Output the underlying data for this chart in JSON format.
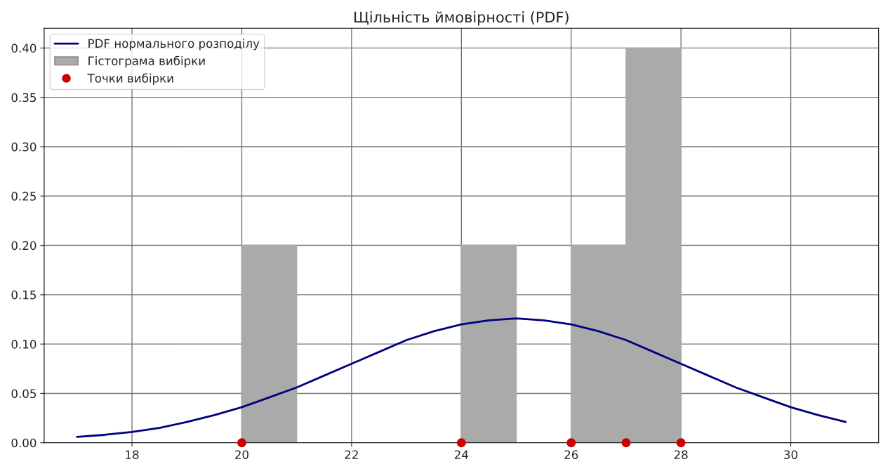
{
  "chart_data": {
    "type": "line",
    "title": "Щільність ймовірності (PDF)",
    "series": [
      {
        "name": "PDF нормального розподілу",
        "color": "#000080",
        "x": [
          17,
          17.5,
          18,
          18.5,
          19,
          19.5,
          20,
          20.5,
          21,
          21.5,
          22,
          22.5,
          23,
          23.5,
          24,
          24.5,
          25,
          25.5,
          26,
          26.5,
          27,
          27.5,
          28,
          28.5,
          29,
          29.5,
          30,
          30.5,
          31
        ],
        "values": [
          0.006,
          0.008,
          0.011,
          0.015,
          0.021,
          0.028,
          0.036,
          0.046,
          0.056,
          0.068,
          0.08,
          0.092,
          0.104,
          0.113,
          0.12,
          0.124,
          0.126,
          0.124,
          0.12,
          0.113,
          0.104,
          0.092,
          0.08,
          0.068,
          0.056,
          0.046,
          0.036,
          0.028,
          0.021
        ]
      },
      {
        "type": "histogram",
        "name": "Гістограма вибірки",
        "color": "#aaaaaa",
        "bins": [
          20,
          21,
          22,
          23,
          24,
          25,
          26,
          27,
          28
        ],
        "values": [
          0.2,
          0,
          0,
          0,
          0.2,
          0,
          0.2,
          0.4
        ]
      },
      {
        "type": "scatter",
        "name": "Точки вибірки",
        "color": "#cc0000",
        "marker": "circle",
        "x": [
          20,
          24,
          26,
          27,
          28
        ],
        "values": [
          0,
          0,
          0,
          0,
          0
        ]
      }
    ],
    "xlim": [
      16.4,
      31.6
    ],
    "xticks": [
      18,
      20,
      22,
      24,
      26,
      28,
      30
    ],
    "ylim": [
      0,
      0.42
    ],
    "yticks": [
      {
        "value": 0,
        "label": "0.00"
      },
      {
        "value": 0.05,
        "label": "0.05"
      },
      {
        "value": 0.1,
        "label": "0.10"
      },
      {
        "value": 0.15,
        "label": "0.15"
      },
      {
        "value": 0.2,
        "label": "0.20"
      },
      {
        "value": 0.25,
        "label": "0.25"
      },
      {
        "value": 0.3,
        "label": "0.30"
      },
      {
        "value": 0.35,
        "label": "0.35"
      },
      {
        "value": 0.4,
        "label": "0.40"
      }
    ],
    "grid": true,
    "legend": "top left"
  }
}
